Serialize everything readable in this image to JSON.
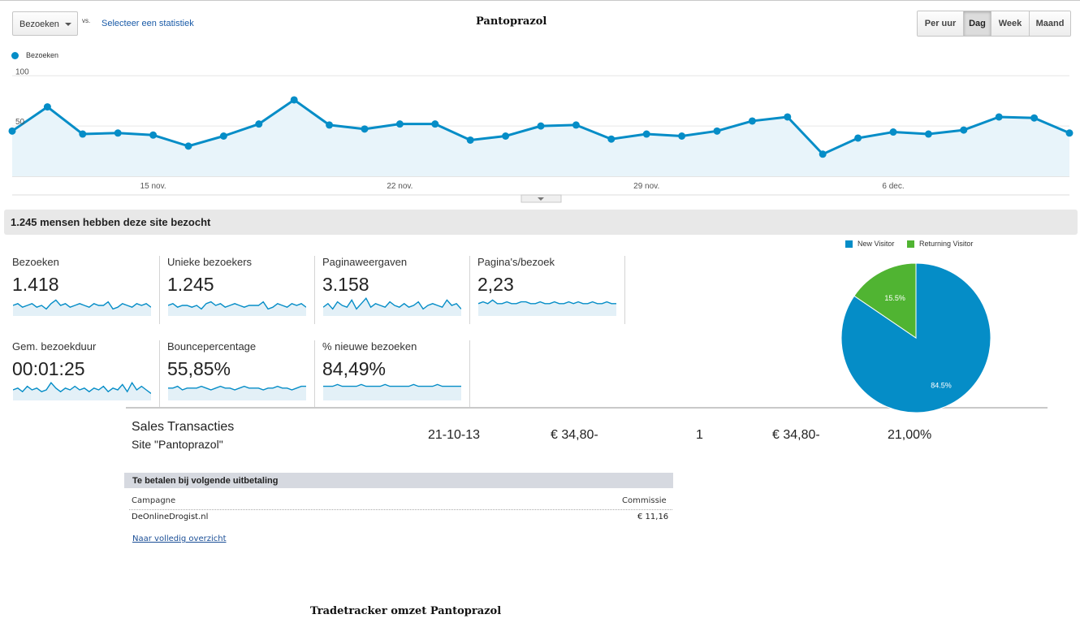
{
  "header": {
    "metric_select": "Bezoeken",
    "vs_label": "vs.",
    "select_stat_link": "Selecteer een statistiek",
    "title": "Pantoprazol",
    "periods": [
      {
        "label": "Per uur",
        "active": false
      },
      {
        "label": "Dag",
        "active": true
      },
      {
        "label": "Week",
        "active": false
      },
      {
        "label": "Maand",
        "active": false
      }
    ]
  },
  "chart_data": [
    {
      "type": "area",
      "series": [
        {
          "name": "Bezoeken",
          "color": "#058dc7",
          "values": [
            45,
            69,
            42,
            43,
            41,
            30,
            40,
            52,
            76,
            51,
            47,
            52,
            52,
            36,
            40,
            50,
            51,
            37,
            42,
            40,
            45,
            55,
            59,
            22,
            38,
            44,
            42,
            46,
            59,
            58,
            43
          ]
        }
      ],
      "x_tick_labels": [
        "15 nov.",
        "22 nov.",
        "29 nov.",
        "6 dec."
      ],
      "y_tick_labels": [
        "100",
        "50"
      ],
      "ylim": [
        0,
        100
      ],
      "legend": "top-left"
    },
    {
      "type": "pie",
      "slices": [
        {
          "name": "New Visitor",
          "value": 84.5,
          "label": "84.5%",
          "color": "#058dc7"
        },
        {
          "name": "Returning Visitor",
          "value": 15.5,
          "label": "15.5%",
          "color": "#50b432"
        }
      ],
      "legend": "top"
    }
  ],
  "summary": {
    "text": "1.245 mensen hebben deze site bezocht"
  },
  "stats": [
    {
      "label": "Bezoeken",
      "value": "1.418",
      "spark": [
        5,
        6,
        4,
        5,
        6,
        4,
        5,
        3,
        6,
        8,
        5,
        6,
        4,
        5,
        6,
        5,
        4,
        6,
        5,
        5,
        7,
        3,
        4,
        6,
        5,
        4,
        6,
        5,
        6,
        4
      ]
    },
    {
      "label": "Unieke bezoekers",
      "value": "1.245",
      "spark": [
        5,
        6,
        4,
        5,
        5,
        4,
        5,
        3,
        6,
        7,
        5,
        6,
        4,
        5,
        6,
        5,
        4,
        5,
        5,
        5,
        7,
        3,
        4,
        6,
        5,
        4,
        6,
        5,
        6,
        4
      ]
    },
    {
      "label": "Paginaweergaven",
      "value": "3.158",
      "spark": [
        4,
        6,
        3,
        7,
        5,
        4,
        8,
        3,
        6,
        9,
        4,
        6,
        5,
        4,
        7,
        5,
        4,
        6,
        4,
        5,
        7,
        3,
        5,
        6,
        5,
        4,
        8,
        5,
        6,
        3
      ]
    },
    {
      "label": "Pagina's/bezoek",
      "value": "2,23",
      "spark": [
        6,
        7,
        6,
        8,
        6,
        6,
        7,
        6,
        6,
        7,
        7,
        6,
        6,
        7,
        6,
        6,
        7,
        6,
        6,
        7,
        6,
        7,
        6,
        6,
        7,
        6,
        6,
        7,
        6,
        6
      ]
    },
    {
      "label": "Gem. bezoekduur",
      "value": "00:01:25",
      "spark": [
        5,
        6,
        4,
        7,
        5,
        6,
        4,
        5,
        9,
        6,
        4,
        6,
        5,
        7,
        5,
        6,
        4,
        6,
        5,
        7,
        4,
        6,
        5,
        8,
        4,
        9,
        5,
        7,
        5,
        3
      ]
    },
    {
      "label": "Bouncepercentage",
      "value": "55,85%",
      "spark": [
        6,
        6,
        7,
        5,
        6,
        6,
        6,
        7,
        6,
        5,
        6,
        7,
        6,
        6,
        5,
        6,
        7,
        6,
        6,
        6,
        5,
        6,
        6,
        7,
        6,
        6,
        5,
        6,
        7,
        7
      ]
    },
    {
      "label": "% nieuwe bezoeken",
      "value": "84,49%",
      "spark": [
        7,
        7,
        7,
        8,
        7,
        7,
        7,
        7,
        8,
        7,
        7,
        7,
        7,
        8,
        7,
        7,
        7,
        7,
        7,
        8,
        7,
        7,
        7,
        7,
        8,
        7,
        7,
        7,
        7,
        7
      ]
    }
  ],
  "sales": {
    "title": "Sales Transacties",
    "subtitle": "Site \"Pantoprazol\"",
    "date": "21-10-13",
    "amount": "€ 34,80-",
    "count": "1",
    "amount2": "€ 34,80-",
    "percentage": "21,00%"
  },
  "tradetracker": {
    "header": "Te betalen bij volgende uitbetaling",
    "col_campaign": "Campagne",
    "col_commission": "Commissie",
    "row_campaign": "DeOnlineDrogist.nl",
    "row_commission": "€ 11,16",
    "link": "Naar volledig overzicht"
  },
  "footer": {
    "title": "Tradetracker omzet Pantoprazol"
  }
}
